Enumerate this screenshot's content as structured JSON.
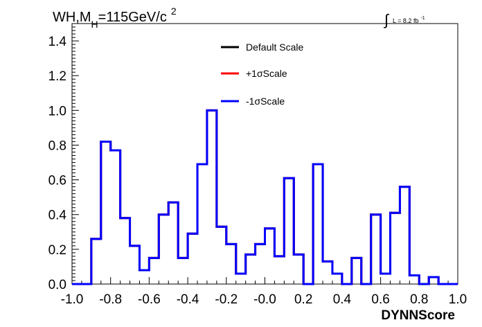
{
  "chart_data": {
    "type": "histogram",
    "title_parts": {
      "pre": "WH,M",
      "sub": "H",
      "mid": "=115GeV/c",
      "sup": "2"
    },
    "lumi_parts": {
      "integral_sign": "∫",
      "text": "L = 8.2 fb",
      "sup": "-1"
    },
    "xlabel": "DYNNScore",
    "ylabel": "",
    "xlim": [
      -1.0,
      1.0
    ],
    "ylim": [
      0.0,
      1.5
    ],
    "x_ticks": [
      "-1.0",
      "-0.8",
      "-0.6",
      "-0.4",
      "-0.2",
      "-0.0",
      "0.2",
      "0.4",
      "0.6",
      "0.8",
      "1.0"
    ],
    "x_tick_values": [
      -1.0,
      -0.8,
      -0.6,
      -0.4,
      -0.2,
      0.0,
      0.2,
      0.4,
      0.6,
      0.8,
      1.0
    ],
    "y_ticks": [
      "0.0",
      "0.2",
      "0.4",
      "0.6",
      "0.8",
      "1.0",
      "1.2",
      "1.4"
    ],
    "y_tick_values": [
      0.0,
      0.2,
      0.4,
      0.6,
      0.8,
      1.0,
      1.2,
      1.4
    ],
    "bin_edges_start": -1.0,
    "bin_width": 0.05,
    "grid": false,
    "legend_placement": "top-center",
    "series": [
      {
        "name": "Default Scale",
        "color": "#000000",
        "values": [
          0.0,
          0.0,
          0.26,
          0.82,
          0.77,
          0.38,
          0.22,
          0.08,
          0.15,
          0.4,
          0.47,
          0.15,
          0.29,
          0.69,
          1.0,
          0.33,
          0.23,
          0.06,
          0.17,
          0.23,
          0.32,
          0.16,
          0.61,
          0.17,
          0.0,
          0.69,
          0.13,
          0.06,
          0.0,
          0.15,
          0.0,
          0.4,
          0.06,
          0.41,
          0.56,
          0.05,
          0.0,
          0.04,
          0.0,
          0.0
        ]
      },
      {
        "name": "+1σScale",
        "color": "#ff0000",
        "values": [
          0.0,
          0.0,
          0.26,
          0.82,
          0.77,
          0.38,
          0.22,
          0.08,
          0.15,
          0.4,
          0.47,
          0.15,
          0.29,
          0.69,
          1.0,
          0.33,
          0.23,
          0.06,
          0.17,
          0.23,
          0.32,
          0.16,
          0.61,
          0.17,
          0.0,
          0.69,
          0.13,
          0.06,
          0.0,
          0.15,
          0.0,
          0.4,
          0.06,
          0.41,
          0.56,
          0.05,
          0.0,
          0.04,
          0.0,
          0.0
        ]
      },
      {
        "name": "-1σScale",
        "color": "#0000ff",
        "values": [
          0.0,
          0.0,
          0.26,
          0.82,
          0.77,
          0.38,
          0.22,
          0.08,
          0.15,
          0.4,
          0.47,
          0.15,
          0.29,
          0.69,
          1.0,
          0.33,
          0.23,
          0.06,
          0.17,
          0.23,
          0.32,
          0.16,
          0.61,
          0.17,
          0.0,
          0.69,
          0.13,
          0.06,
          0.0,
          0.15,
          0.0,
          0.4,
          0.06,
          0.41,
          0.56,
          0.05,
          0.0,
          0.04,
          0.0,
          0.0
        ]
      }
    ]
  }
}
